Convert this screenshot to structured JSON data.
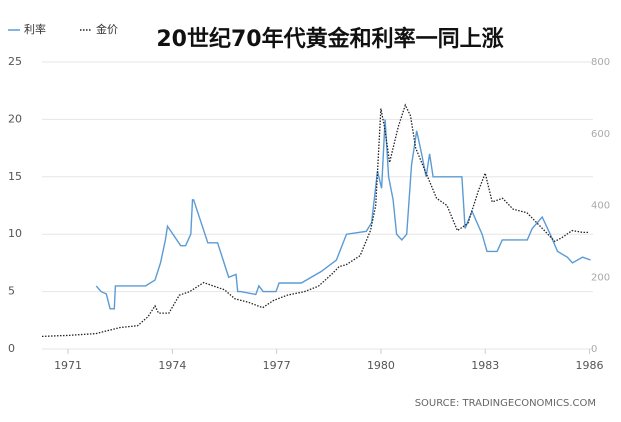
{
  "chart_data": {
    "type": "line",
    "title": "20世纪70年代黄金和利率一同上涨",
    "source": "SOURCE: TRADINGECONOMICS.COM",
    "xlim": [
      1970.25,
      1986.1
    ],
    "xticks": [
      1971,
      1974,
      1977,
      1980,
      1983,
      1986
    ],
    "ylim": [
      0,
      25
    ],
    "yticks": [
      0,
      5,
      10,
      15,
      20,
      25
    ],
    "y2lim": [
      0,
      800
    ],
    "y2ticks": [
      0,
      200,
      400,
      600,
      800
    ],
    "grid": true,
    "series": [
      {
        "name": "利率",
        "color": "#5b9bd5",
        "dash": false,
        "x": [
          1971.81,
          1971.95,
          1972.1,
          1972.21,
          1972.33,
          1972.36,
          1973.23,
          1973.5,
          1973.66,
          1973.8,
          1973.86,
          1974.24,
          1974.38,
          1974.53,
          1974.58,
          1974.61,
          1975.02,
          1975.3,
          1975.54,
          1975.62,
          1975.83,
          1975.88,
          1975.97,
          1976.4,
          1976.49,
          1976.61,
          1976.98,
          1977.07,
          1977.71,
          1978.28,
          1978.72,
          1979.01,
          1979.58,
          1979.73,
          1979.9,
          1980.02,
          1980.12,
          1980.22,
          1980.35,
          1980.45,
          1980.6,
          1980.74,
          1980.88,
          1981.03,
          1981.17,
          1981.3,
          1981.4,
          1981.5,
          1981.61,
          1982.18,
          1982.33,
          1982.42,
          1982.62,
          1982.91,
          1983.05,
          1983.34,
          1983.49,
          1984.21,
          1984.35,
          1984.64,
          1984.87,
          1985.08,
          1985.36,
          1985.51,
          1985.8,
          1986.03
        ],
        "values": [
          5.5,
          5.0,
          4.8,
          3.5,
          3.5,
          5.5,
          5.5,
          6.0,
          7.5,
          9.5,
          10.7,
          9.0,
          9.0,
          10.0,
          13.0,
          13.0,
          9.25,
          9.25,
          7.0,
          6.25,
          6.5,
          5.0,
          5.0,
          4.75,
          5.5,
          5.0,
          5.0,
          5.75,
          5.75,
          6.75,
          7.75,
          10.0,
          10.25,
          11.0,
          15.5,
          14.0,
          20.0,
          15.0,
          13.0,
          10.0,
          9.5,
          10.0,
          16.0,
          19.0,
          17.0,
          15.0,
          17.0,
          15.0,
          15.0,
          15.0,
          15.0,
          10.5,
          12.0,
          10.0,
          8.5,
          8.5,
          9.5,
          9.5,
          10.5,
          11.5,
          10.0,
          8.5,
          8.0,
          7.5,
          8.0,
          7.75
        ]
      },
      {
        "name": "金价",
        "color": "#222222",
        "dash": true,
        "axis": "y2",
        "x": [
          1970.25,
          1971.0,
          1971.8,
          1972.5,
          1973.0,
          1973.3,
          1973.5,
          1973.6,
          1973.9,
          1974.2,
          1974.5,
          1974.9,
          1975.2,
          1975.5,
          1975.8,
          1976.2,
          1976.6,
          1976.9,
          1977.3,
          1977.8,
          1978.2,
          1978.6,
          1978.8,
          1979.0,
          1979.4,
          1979.7,
          1979.85,
          1980.0,
          1980.1,
          1980.25,
          1980.5,
          1980.7,
          1980.85,
          1981.0,
          1981.3,
          1981.6,
          1981.9,
          1982.2,
          1982.5,
          1982.8,
          1983.0,
          1983.2,
          1983.5,
          1983.8,
          1984.2,
          1984.6,
          1985.0,
          1985.2,
          1985.5,
          1985.8,
          1986.0
        ],
        "values": [
          35,
          38,
          43,
          60,
          65,
          90,
          120,
          100,
          100,
          150,
          160,
          185,
          175,
          165,
          140,
          130,
          115,
          135,
          150,
          160,
          175,
          210,
          230,
          235,
          260,
          330,
          400,
          670,
          620,
          520,
          620,
          680,
          650,
          560,
          490,
          420,
          400,
          330,
          350,
          440,
          490,
          410,
          420,
          390,
          380,
          340,
          300,
          310,
          330,
          325,
          325
        ]
      }
    ]
  }
}
